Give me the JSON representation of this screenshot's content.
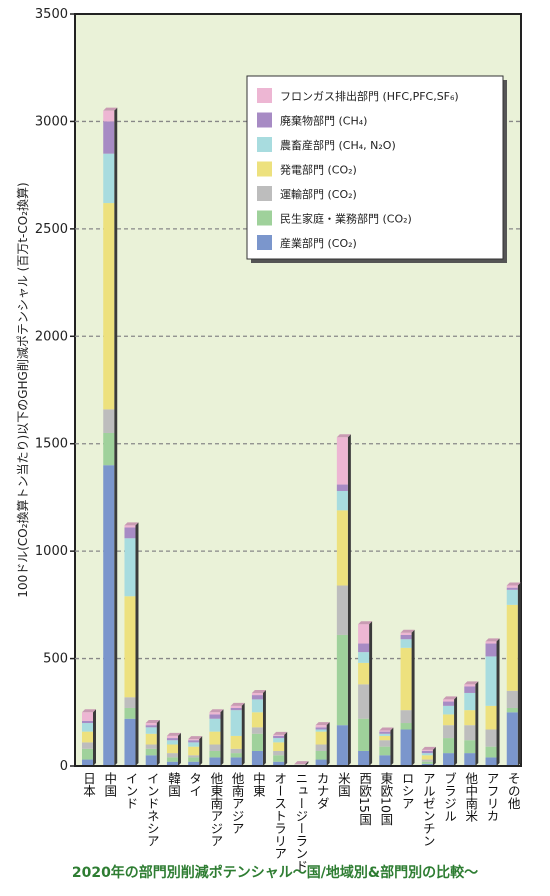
{
  "caption": "2020年の部門別削減ポテンシャル〜国/地域別&部門別の比較〜",
  "colors": {
    "plot_bg": "#eaf2d8",
    "grid": "#888888",
    "axis": "#222222",
    "caption": "#2e7d32"
  },
  "chart_data": {
    "type": "bar",
    "stacked": true,
    "ylabel": "100ドル(CO₂換算トン当たり)以下のGHG削減ポテンシャル (百万t-CO₂換算)",
    "ylim": [
      0,
      3500
    ],
    "yticks": [
      0,
      500,
      1000,
      1500,
      2000,
      2500,
      3000,
      3500
    ],
    "grid": "horizontal dashed",
    "legend_position": "top-right",
    "categories": [
      "日本",
      "中国",
      "インド",
      "インドネシア",
      "韓国",
      "タイ",
      "他東南アジア",
      "他南アジア",
      "中東",
      "オーストラリア",
      "ニュージーランド",
      "カナダ",
      "米国",
      "西欧15国",
      "東欧10国",
      "ロシア",
      "アルゼンチン",
      "ブラジル",
      "他中南米",
      "アフリカ",
      "その他"
    ],
    "series": [
      {
        "name": "産業部門 (CO₂)",
        "color": "#7b96cc",
        "values": [
          30,
          1400,
          220,
          50,
          20,
          20,
          40,
          40,
          70,
          20,
          2,
          30,
          190,
          70,
          50,
          170,
          10,
          60,
          60,
          40,
          250
        ]
      },
      {
        "name": "民生家庭・業務部門 (CO₂)",
        "color": "#9fd19b",
        "values": [
          50,
          150,
          50,
          30,
          20,
          20,
          30,
          20,
          80,
          30,
          2,
          40,
          420,
          150,
          40,
          30,
          10,
          70,
          60,
          50,
          20
        ]
      },
      {
        "name": "運輸部門 (CO₂)",
        "color": "#bdbdbd",
        "values": [
          30,
          110,
          50,
          20,
          20,
          10,
          30,
          20,
          30,
          20,
          1,
          30,
          230,
          160,
          30,
          60,
          10,
          60,
          70,
          80,
          80
        ]
      },
      {
        "name": "発電部門 (CO₂)",
        "color": "#ede17e",
        "values": [
          50,
          960,
          470,
          50,
          40,
          40,
          60,
          60,
          70,
          40,
          1,
          60,
          350,
          100,
          20,
          290,
          20,
          50,
          70,
          110,
          400
        ]
      },
      {
        "name": "農畜産部門 (CH₄, N₂O)",
        "color": "#a8dcdf",
        "values": [
          40,
          230,
          270,
          30,
          20,
          20,
          60,
          120,
          60,
          20,
          1,
          10,
          90,
          50,
          10,
          40,
          10,
          40,
          80,
          230,
          70
        ]
      },
      {
        "name": "廃棄物部門 (CH₄)",
        "color": "#a78bc4",
        "values": [
          10,
          150,
          50,
          10,
          10,
          10,
          20,
          10,
          20,
          10,
          1,
          10,
          30,
          40,
          10,
          20,
          10,
          20,
          30,
          60,
          10
        ]
      },
      {
        "name": "フロンガス排出部門 (HFC,PFC,SF₆)",
        "color": "#edb6d3",
        "values": [
          40,
          50,
          10,
          10,
          10,
          5,
          10,
          10,
          10,
          5,
          1,
          10,
          220,
          90,
          5,
          10,
          5,
          10,
          10,
          10,
          10
        ]
      }
    ]
  }
}
